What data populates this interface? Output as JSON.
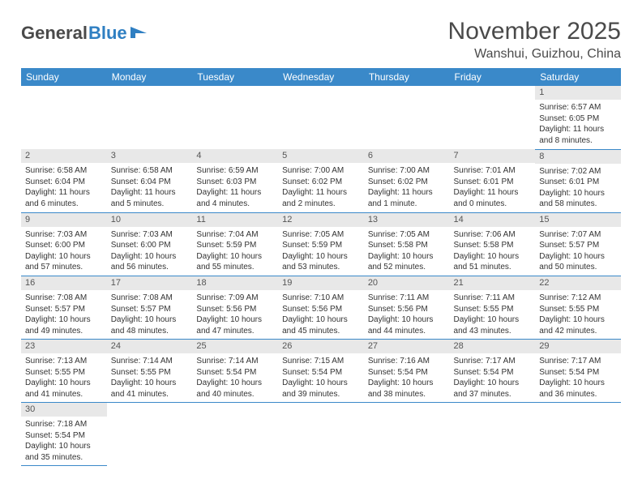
{
  "logo": {
    "text1": "General",
    "text2": "Blue"
  },
  "title": "November 2025",
  "location": "Wanshui, Guizhou, China",
  "weekday_header_bg": "#3a89c9",
  "weekday_header_fg": "#ffffff",
  "daynum_bg": "#e8e8e8",
  "border_color": "#3a89c9",
  "background_color": "#ffffff",
  "text_color": "#333333",
  "title_fontsize": 30,
  "location_fontsize": 16,
  "header_fontsize": 12,
  "daynum_fontsize": 11,
  "body_fontsize": 10,
  "weekdays": [
    "Sunday",
    "Monday",
    "Tuesday",
    "Wednesday",
    "Thursday",
    "Friday",
    "Saturday"
  ],
  "weeks": [
    [
      null,
      null,
      null,
      null,
      null,
      null,
      {
        "n": "1",
        "sunrise": "Sunrise: 6:57 AM",
        "sunset": "Sunset: 6:05 PM",
        "daylight": "Daylight: 11 hours and 8 minutes."
      }
    ],
    [
      {
        "n": "2",
        "sunrise": "Sunrise: 6:58 AM",
        "sunset": "Sunset: 6:04 PM",
        "daylight": "Daylight: 11 hours and 6 minutes."
      },
      {
        "n": "3",
        "sunrise": "Sunrise: 6:58 AM",
        "sunset": "Sunset: 6:04 PM",
        "daylight": "Daylight: 11 hours and 5 minutes."
      },
      {
        "n": "4",
        "sunrise": "Sunrise: 6:59 AM",
        "sunset": "Sunset: 6:03 PM",
        "daylight": "Daylight: 11 hours and 4 minutes."
      },
      {
        "n": "5",
        "sunrise": "Sunrise: 7:00 AM",
        "sunset": "Sunset: 6:02 PM",
        "daylight": "Daylight: 11 hours and 2 minutes."
      },
      {
        "n": "6",
        "sunrise": "Sunrise: 7:00 AM",
        "sunset": "Sunset: 6:02 PM",
        "daylight": "Daylight: 11 hours and 1 minute."
      },
      {
        "n": "7",
        "sunrise": "Sunrise: 7:01 AM",
        "sunset": "Sunset: 6:01 PM",
        "daylight": "Daylight: 11 hours and 0 minutes."
      },
      {
        "n": "8",
        "sunrise": "Sunrise: 7:02 AM",
        "sunset": "Sunset: 6:01 PM",
        "daylight": "Daylight: 10 hours and 58 minutes."
      }
    ],
    [
      {
        "n": "9",
        "sunrise": "Sunrise: 7:03 AM",
        "sunset": "Sunset: 6:00 PM",
        "daylight": "Daylight: 10 hours and 57 minutes."
      },
      {
        "n": "10",
        "sunrise": "Sunrise: 7:03 AM",
        "sunset": "Sunset: 6:00 PM",
        "daylight": "Daylight: 10 hours and 56 minutes."
      },
      {
        "n": "11",
        "sunrise": "Sunrise: 7:04 AM",
        "sunset": "Sunset: 5:59 PM",
        "daylight": "Daylight: 10 hours and 55 minutes."
      },
      {
        "n": "12",
        "sunrise": "Sunrise: 7:05 AM",
        "sunset": "Sunset: 5:59 PM",
        "daylight": "Daylight: 10 hours and 53 minutes."
      },
      {
        "n": "13",
        "sunrise": "Sunrise: 7:05 AM",
        "sunset": "Sunset: 5:58 PM",
        "daylight": "Daylight: 10 hours and 52 minutes."
      },
      {
        "n": "14",
        "sunrise": "Sunrise: 7:06 AM",
        "sunset": "Sunset: 5:58 PM",
        "daylight": "Daylight: 10 hours and 51 minutes."
      },
      {
        "n": "15",
        "sunrise": "Sunrise: 7:07 AM",
        "sunset": "Sunset: 5:57 PM",
        "daylight": "Daylight: 10 hours and 50 minutes."
      }
    ],
    [
      {
        "n": "16",
        "sunrise": "Sunrise: 7:08 AM",
        "sunset": "Sunset: 5:57 PM",
        "daylight": "Daylight: 10 hours and 49 minutes."
      },
      {
        "n": "17",
        "sunrise": "Sunrise: 7:08 AM",
        "sunset": "Sunset: 5:57 PM",
        "daylight": "Daylight: 10 hours and 48 minutes."
      },
      {
        "n": "18",
        "sunrise": "Sunrise: 7:09 AM",
        "sunset": "Sunset: 5:56 PM",
        "daylight": "Daylight: 10 hours and 47 minutes."
      },
      {
        "n": "19",
        "sunrise": "Sunrise: 7:10 AM",
        "sunset": "Sunset: 5:56 PM",
        "daylight": "Daylight: 10 hours and 45 minutes."
      },
      {
        "n": "20",
        "sunrise": "Sunrise: 7:11 AM",
        "sunset": "Sunset: 5:56 PM",
        "daylight": "Daylight: 10 hours and 44 minutes."
      },
      {
        "n": "21",
        "sunrise": "Sunrise: 7:11 AM",
        "sunset": "Sunset: 5:55 PM",
        "daylight": "Daylight: 10 hours and 43 minutes."
      },
      {
        "n": "22",
        "sunrise": "Sunrise: 7:12 AM",
        "sunset": "Sunset: 5:55 PM",
        "daylight": "Daylight: 10 hours and 42 minutes."
      }
    ],
    [
      {
        "n": "23",
        "sunrise": "Sunrise: 7:13 AM",
        "sunset": "Sunset: 5:55 PM",
        "daylight": "Daylight: 10 hours and 41 minutes."
      },
      {
        "n": "24",
        "sunrise": "Sunrise: 7:14 AM",
        "sunset": "Sunset: 5:55 PM",
        "daylight": "Daylight: 10 hours and 41 minutes."
      },
      {
        "n": "25",
        "sunrise": "Sunrise: 7:14 AM",
        "sunset": "Sunset: 5:54 PM",
        "daylight": "Daylight: 10 hours and 40 minutes."
      },
      {
        "n": "26",
        "sunrise": "Sunrise: 7:15 AM",
        "sunset": "Sunset: 5:54 PM",
        "daylight": "Daylight: 10 hours and 39 minutes."
      },
      {
        "n": "27",
        "sunrise": "Sunrise: 7:16 AM",
        "sunset": "Sunset: 5:54 PM",
        "daylight": "Daylight: 10 hours and 38 minutes."
      },
      {
        "n": "28",
        "sunrise": "Sunrise: 7:17 AM",
        "sunset": "Sunset: 5:54 PM",
        "daylight": "Daylight: 10 hours and 37 minutes."
      },
      {
        "n": "29",
        "sunrise": "Sunrise: 7:17 AM",
        "sunset": "Sunset: 5:54 PM",
        "daylight": "Daylight: 10 hours and 36 minutes."
      }
    ],
    [
      {
        "n": "30",
        "sunrise": "Sunrise: 7:18 AM",
        "sunset": "Sunset: 5:54 PM",
        "daylight": "Daylight: 10 hours and 35 minutes."
      },
      null,
      null,
      null,
      null,
      null,
      null
    ]
  ]
}
